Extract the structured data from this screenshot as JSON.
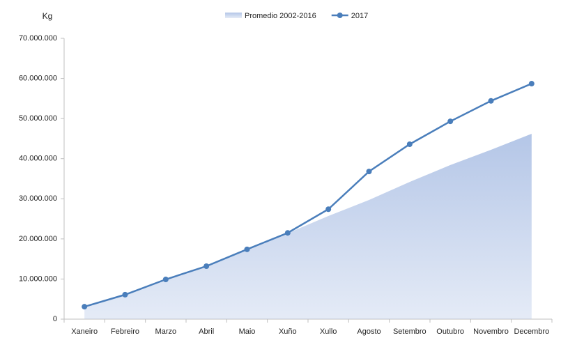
{
  "chart_data": {
    "type": "area-line",
    "y_label": "Kg",
    "categories": [
      "Xaneiro",
      "Febreiro",
      "Marzo",
      "Abril",
      "Maio",
      "Xuño",
      "Xullo",
      "Agosto",
      "Setembro",
      "Outubro",
      "Novembro",
      "Decembro"
    ],
    "series": [
      {
        "name": "Promedio 2002-2016",
        "kind": "area",
        "color": "#b4c6e7",
        "values": [
          3100000,
          6000000,
          9800000,
          13100000,
          17300000,
          21400000,
          25700000,
          29700000,
          34200000,
          38400000,
          42200000,
          46200000
        ]
      },
      {
        "name": "2017",
        "kind": "line",
        "color": "#4a7ebb",
        "values": [
          3100000,
          6100000,
          9900000,
          13200000,
          17400000,
          21500000,
          27400000,
          36800000,
          43600000,
          49300000,
          54400000,
          58700000
        ]
      }
    ],
    "ylim": [
      0,
      70000000
    ],
    "yticks": [
      0,
      {
        "value": 10000000,
        "label": "10.000.000"
      },
      {
        "value": 20000000,
        "label": "20.000.000"
      },
      {
        "value": 30000000,
        "label": "30.000.000"
      },
      {
        "value": 40000000,
        "label": "40.000.000"
      },
      {
        "value": 50000000,
        "label": "50.000.000"
      },
      {
        "value": 60000000,
        "label": "60.000.000"
      },
      {
        "value": 70000000,
        "label": "70.000.000"
      }
    ],
    "legend": "top"
  }
}
